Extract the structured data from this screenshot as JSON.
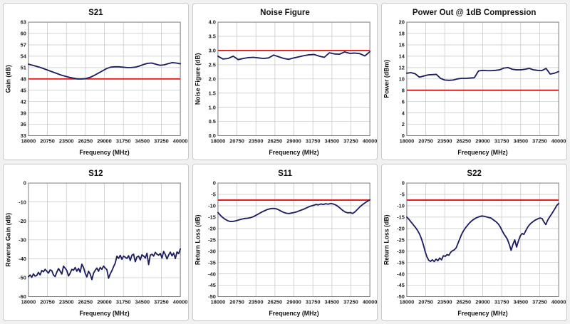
{
  "style": {
    "series_color": "#1c1c60",
    "limit_color": "#e51c1c",
    "grid_color": "#c4c4c4",
    "axis_color": "#7f7f7f",
    "panel_border": "#c9c9c9",
    "background": "#f1f1f1"
  },
  "chart_data": [
    {
      "id": "s21",
      "type": "line",
      "title": "S21",
      "xlabel": "Frequency (MHz)",
      "ylabel": "Gain (dB)",
      "xlim": [
        18000,
        40000
      ],
      "xticks": [
        18000,
        20750,
        23500,
        26250,
        29000,
        31750,
        34500,
        37250,
        40000
      ],
      "ylim": [
        33,
        63
      ],
      "ystep": 3,
      "ydecimals": 0,
      "limit": 48,
      "values": [
        51.9,
        51.6,
        51.3,
        51.0,
        50.6,
        50.2,
        49.8,
        49.4,
        49.0,
        48.7,
        48.4,
        48.2,
        48.0,
        48.0,
        48.1,
        48.4,
        48.9,
        49.5,
        50.1,
        50.7,
        51.1,
        51.2,
        51.2,
        51.1,
        51.0,
        51.0,
        51.1,
        51.4,
        51.8,
        52.1,
        52.2,
        51.9,
        51.6,
        51.7,
        52.0,
        52.3,
        52.2,
        52.0
      ]
    },
    {
      "id": "noise-figure",
      "type": "line",
      "title": "Noise Figure",
      "xlabel": "Frequency (MHz)",
      "ylabel": "Noise Figure (dB)",
      "xlim": [
        18000,
        40000
      ],
      "xticks": [
        18000,
        20750,
        23500,
        26250,
        29000,
        31750,
        34500,
        37250,
        40000
      ],
      "ylim": [
        0,
        4
      ],
      "ystep": 0.5,
      "ydecimals": 1,
      "limit": 3.0,
      "values": [
        2.8,
        2.7,
        2.72,
        2.8,
        2.68,
        2.72,
        2.75,
        2.76,
        2.74,
        2.72,
        2.74,
        2.84,
        2.78,
        2.72,
        2.69,
        2.74,
        2.78,
        2.82,
        2.85,
        2.86,
        2.8,
        2.76,
        2.92,
        2.88,
        2.87,
        2.95,
        2.9,
        2.91,
        2.89,
        2.81,
        2.96
      ]
    },
    {
      "id": "power-out",
      "type": "line",
      "title": "Power Out @ 1dB Compression",
      "xlabel": "Frequency (MHz)",
      "ylabel": "Power (dBm)",
      "xlim": [
        18000,
        40000
      ],
      "xticks": [
        18000,
        20750,
        23500,
        26250,
        29000,
        31750,
        34500,
        37250,
        40000
      ],
      "ylim": [
        0,
        20
      ],
      "ystep": 2,
      "ydecimals": 0,
      "limit": 8,
      "values": [
        11.0,
        11.1,
        10.9,
        10.3,
        10.5,
        10.7,
        10.75,
        10.8,
        10.1,
        9.8,
        9.75,
        9.8,
        10.0,
        10.1,
        10.1,
        10.15,
        10.2,
        11.4,
        11.5,
        11.45,
        11.45,
        11.5,
        11.6,
        11.9,
        12.0,
        11.7,
        11.6,
        11.6,
        11.7,
        11.85,
        11.6,
        11.5,
        11.45,
        11.85,
        10.85,
        11.0,
        11.3
      ]
    },
    {
      "id": "s12",
      "type": "line",
      "title": "S12",
      "xlabel": "Frequency (MHz)",
      "ylabel": "Reverse Gain (dB)",
      "xlim": [
        18000,
        40000
      ],
      "xticks": [
        18000,
        20750,
        23500,
        26250,
        29000,
        31750,
        34500,
        37250,
        40000
      ],
      "ylim": [
        -60,
        0
      ],
      "ystep": 10,
      "ydecimals": 0,
      "limit": null,
      "values": [
        -49.5,
        -48.6,
        -49.8,
        -48.0,
        -49.2,
        -48.8,
        -47.2,
        -48.5,
        -46.2,
        -46.9,
        -45.6,
        -46.6,
        -47.6,
        -45.9,
        -46.3,
        -48.6,
        -49.4,
        -47.1,
        -45.2,
        -46.6,
        -48.1,
        -43.9,
        -45.0,
        -46.2,
        -49.1,
        -47.6,
        -45.6,
        -46.1,
        -44.6,
        -46.6,
        -45.1,
        -47.1,
        -42.9,
        -44.6,
        -47.6,
        -49.6,
        -46.6,
        -48.1,
        -51.0,
        -47.6,
        -46.1,
        -44.9,
        -46.6,
        -44.6,
        -45.6,
        -43.9,
        -44.9,
        -45.8,
        -50.3,
        -48.0,
        -46.3,
        -44.2,
        -42.3,
        -38.6,
        -39.8,
        -38.2,
        -40.3,
        -38.6,
        -39.2,
        -39.8,
        -38.4,
        -40.9,
        -38.1,
        -37.6,
        -41.6,
        -39.1,
        -38.6,
        -40.6,
        -37.9,
        -38.6,
        -39.6,
        -37.1,
        -43.1,
        -38.1,
        -37.6,
        -38.6,
        -36.6,
        -37.6,
        -38.1,
        -37.2,
        -39.6,
        -36.1,
        -37.8,
        -40.1,
        -38.0,
        -36.5,
        -38.5,
        -37.0,
        -39.9,
        -36.4,
        -37.3,
        -34.8
      ]
    },
    {
      "id": "s11",
      "type": "line",
      "title": "S11",
      "xlabel": "Frequency (MHz)",
      "ylabel": "Return Loss (dB)",
      "xlim": [
        18000,
        40000
      ],
      "xticks": [
        18000,
        20750,
        23500,
        26250,
        29000,
        31750,
        34500,
        37250,
        40000
      ],
      "ylim": [
        -50,
        0
      ],
      "ystep": 5,
      "ydecimals": 0,
      "limit": -7.5,
      "values": [
        -13.0,
        -14.2,
        -15.2,
        -16.0,
        -16.6,
        -16.9,
        -16.9,
        -16.7,
        -16.4,
        -16.1,
        -15.8,
        -15.6,
        -15.5,
        -15.3,
        -15.0,
        -14.5,
        -13.9,
        -13.3,
        -12.7,
        -12.2,
        -11.7,
        -11.4,
        -11.2,
        -11.2,
        -11.4,
        -11.9,
        -12.5,
        -13.0,
        -13.3,
        -13.4,
        -13.2,
        -13.0,
        -12.7,
        -12.3,
        -11.9,
        -11.5,
        -11.0,
        -10.5,
        -10.1,
        -9.8,
        -9.4,
        -9.6,
        -9.2,
        -9.4,
        -9.1,
        -9.3,
        -9.0,
        -9.2,
        -9.6,
        -10.3,
        -11.2,
        -12.1,
        -12.8,
        -13.1,
        -13.0,
        -13.4,
        -12.6,
        -11.5,
        -10.4,
        -9.5,
        -8.7,
        -8.0,
        -7.4
      ]
    },
    {
      "id": "s22",
      "type": "line",
      "title": "S22",
      "xlabel": "Frequency (MHz)",
      "ylabel": "Return Loss (dB)",
      "xlim": [
        18000,
        40000
      ],
      "xticks": [
        18000,
        20750,
        23500,
        26250,
        29000,
        31750,
        34500,
        37250,
        40000
      ],
      "ylim": [
        -50,
        0
      ],
      "ystep": 5,
      "ydecimals": 0,
      "limit": -7.5,
      "values": [
        -15.0,
        -15.8,
        -16.8,
        -17.8,
        -18.8,
        -19.8,
        -21.0,
        -22.5,
        -24.5,
        -27.0,
        -30.0,
        -32.5,
        -34.0,
        -34.5,
        -33.8,
        -34.6,
        -33.5,
        -34.2,
        -33.0,
        -33.8,
        -32.0,
        -32.3,
        -31.5,
        -31.8,
        -30.5,
        -29.8,
        -29.4,
        -28.5,
        -26.5,
        -24.5,
        -22.5,
        -21.0,
        -19.8,
        -18.8,
        -17.8,
        -17.0,
        -16.3,
        -15.8,
        -15.3,
        -15.0,
        -14.7,
        -14.5,
        -14.6,
        -14.8,
        -15.0,
        -15.2,
        -15.4,
        -16.0,
        -16.6,
        -17.2,
        -18.0,
        -19.2,
        -20.8,
        -22.3,
        -23.5,
        -24.8,
        -27.0,
        -29.6,
        -27.0,
        -25.0,
        -28.2,
        -25.5,
        -23.3,
        -22.2,
        -22.6,
        -21.0,
        -19.5,
        -18.4,
        -17.6,
        -17.0,
        -16.4,
        -16.0,
        -15.6,
        -15.4,
        -15.7,
        -17.2,
        -18.3,
        -16.3,
        -15.0,
        -13.8,
        -12.5,
        -11.2,
        -9.8,
        -9.0
      ]
    }
  ]
}
